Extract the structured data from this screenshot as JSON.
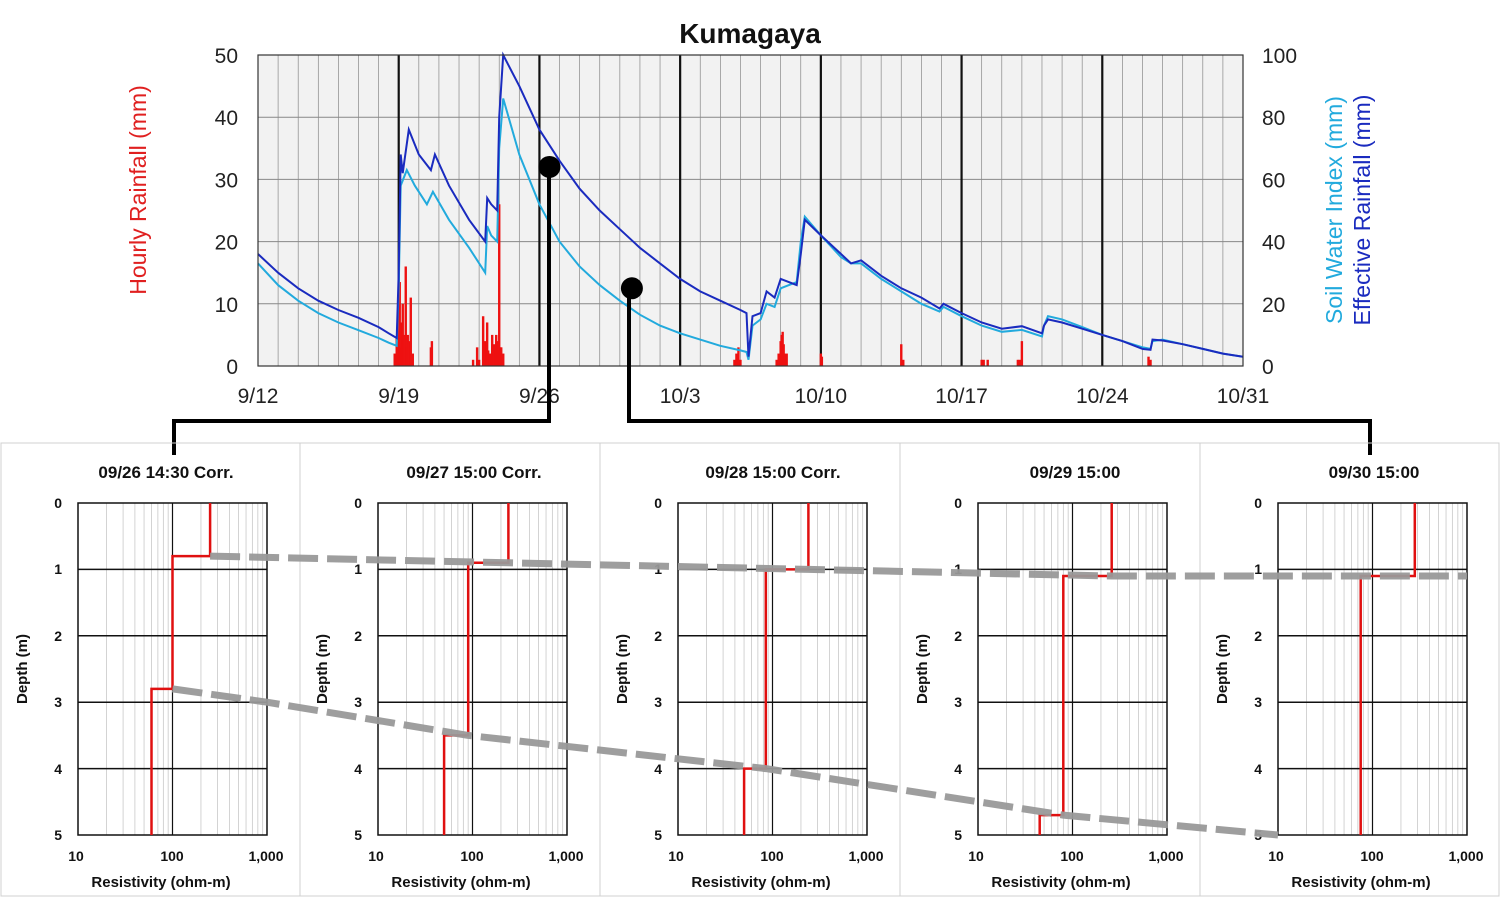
{
  "chart_data": [
    {
      "type": "line",
      "title": "Kumagaya",
      "ylabel_left": "Hourly Rainfall (mm)",
      "ylabel_right": [
        "Soil Water Index (mm)",
        "Effective Rainfall (mm)"
      ],
      "x_tick_labels": [
        "9/12",
        "9/19",
        "9/26",
        "10/3",
        "10/10",
        "10/17",
        "10/24",
        "10/31"
      ],
      "x_range_days": [
        0,
        49
      ],
      "y_left_ticks": [
        "0",
        "10",
        "20",
        "30",
        "40",
        "50"
      ],
      "ylim_left": [
        0,
        50
      ],
      "y_right_ticks": [
        "0",
        "20",
        "40",
        "60",
        "80",
        "100"
      ],
      "ylim_right": [
        0,
        100
      ],
      "colors": {
        "rainfall": "#ee1111",
        "soil_water_index": "#22aadd",
        "effective_rainfall": "#1a2bbf",
        "grid": "#888888",
        "plot_bg": "#f2f2f2"
      },
      "series": [
        {
          "name": "Effective Rainfall (mm)",
          "axis": "right",
          "points": [
            [
              0,
              36
            ],
            [
              1,
              30
            ],
            [
              2,
              25
            ],
            [
              3,
              21
            ],
            [
              4,
              18
            ],
            [
              5,
              15.5
            ],
            [
              6,
              12.5
            ],
            [
              6.5,
              10.5
            ],
            [
              6.9,
              9
            ],
            [
              7.0,
              30
            ],
            [
              7.1,
              68
            ],
            [
              7.2,
              62
            ],
            [
              7.5,
              76
            ],
            [
              8.0,
              68
            ],
            [
              8.6,
              63
            ],
            [
              8.8,
              68
            ],
            [
              9.5,
              58
            ],
            [
              10.5,
              47
            ],
            [
              11.3,
              40
            ],
            [
              11.4,
              54
            ],
            [
              11.6,
              52
            ],
            [
              11.9,
              50
            ],
            [
              12.0,
              80
            ],
            [
              12.2,
              104
            ],
            [
              13.0,
              90
            ],
            [
              14,
              76
            ],
            [
              15,
              66
            ],
            [
              16,
              57
            ],
            [
              17,
              50
            ],
            [
              18,
              44
            ],
            [
              19,
              38
            ],
            [
              20,
              33
            ],
            [
              21,
              28
            ],
            [
              22,
              24
            ],
            [
              23,
              21
            ],
            [
              24,
              18
            ],
            [
              24.3,
              17
            ],
            [
              24.4,
              3
            ],
            [
              24.6,
              16
            ],
            [
              25,
              17
            ],
            [
              25.3,
              24
            ],
            [
              25.7,
              22
            ],
            [
              26,
              28
            ],
            [
              26.8,
              26
            ],
            [
              27.0,
              36
            ],
            [
              27.2,
              47
            ],
            [
              28,
              42
            ],
            [
              29,
              36
            ],
            [
              29.5,
              33
            ],
            [
              30,
              34
            ],
            [
              31,
              29
            ],
            [
              32,
              25
            ],
            [
              33,
              22
            ],
            [
              33.9,
              18.5
            ],
            [
              34.1,
              20
            ],
            [
              35,
              17
            ],
            [
              36,
              14
            ],
            [
              37,
              12
            ],
            [
              38,
              12.8
            ],
            [
              39,
              10.5
            ],
            [
              39.1,
              13
            ],
            [
              39.3,
              15
            ],
            [
              40,
              14
            ],
            [
              41,
              12
            ],
            [
              42,
              10
            ],
            [
              43,
              8
            ],
            [
              44,
              5.5
            ],
            [
              44.4,
              5.2
            ],
            [
              44.5,
              8.5
            ],
            [
              45,
              8.2
            ],
            [
              46,
              7
            ],
            [
              47,
              5.5
            ],
            [
              48,
              4
            ],
            [
              49,
              3
            ]
          ]
        },
        {
          "name": "Soil Water Index (mm)",
          "axis": "right",
          "points": [
            [
              0,
              33
            ],
            [
              1,
              26
            ],
            [
              2,
              21
            ],
            [
              3,
              17
            ],
            [
              4,
              14
            ],
            [
              5,
              11.5
            ],
            [
              6,
              9
            ],
            [
              6.5,
              7.5
            ],
            [
              6.9,
              6.5
            ],
            [
              7.0,
              25
            ],
            [
              7.1,
              58
            ],
            [
              7.4,
              63
            ],
            [
              7.8,
              58
            ],
            [
              8.4,
              52
            ],
            [
              8.7,
              56
            ],
            [
              9.5,
              47
            ],
            [
              10.5,
              38
            ],
            [
              11.3,
              30
            ],
            [
              11.4,
              45
            ],
            [
              11.6,
              42
            ],
            [
              11.9,
              40
            ],
            [
              12.0,
              70
            ],
            [
              12.2,
              86
            ],
            [
              13.0,
              68
            ],
            [
              14,
              52
            ],
            [
              15,
              40
            ],
            [
              16,
              32
            ],
            [
              17,
              26
            ],
            [
              18,
              21
            ],
            [
              19,
              16.5
            ],
            [
              20,
              13
            ],
            [
              21,
              10.5
            ],
            [
              22,
              8.5
            ],
            [
              23,
              6.5
            ],
            [
              24,
              5
            ],
            [
              24.3,
              4.5
            ],
            [
              24.4,
              2
            ],
            [
              24.6,
              13
            ],
            [
              25,
              15
            ],
            [
              25.3,
              20
            ],
            [
              25.7,
              19
            ],
            [
              26,
              25
            ],
            [
              26.8,
              27
            ],
            [
              27.0,
              40
            ],
            [
              27.2,
              48
            ],
            [
              28,
              42
            ],
            [
              29,
              35
            ],
            [
              29.5,
              33
            ],
            [
              30,
              33
            ],
            [
              31,
              28
            ],
            [
              32,
              24
            ],
            [
              33,
              20
            ],
            [
              33.9,
              17.5
            ],
            [
              34.1,
              19
            ],
            [
              35,
              16
            ],
            [
              36,
              13
            ],
            [
              37,
              11
            ],
            [
              38,
              11.6
            ],
            [
              39,
              9.5
            ],
            [
              39.1,
              13
            ],
            [
              39.3,
              16
            ],
            [
              40,
              15
            ],
            [
              41,
              12.5
            ],
            [
              42,
              10
            ],
            [
              43,
              8
            ],
            [
              44,
              6
            ],
            [
              44.4,
              5.5
            ],
            [
              44.5,
              8
            ],
            [
              45,
              8.5
            ],
            [
              46,
              7
            ],
            [
              47,
              5.5
            ],
            [
              48,
              4
            ],
            [
              49,
              3
            ]
          ]
        },
        {
          "name": "Hourly Rainfall (mm)",
          "axis": "left",
          "type": "bar",
          "bars": [
            [
              6.8,
              2
            ],
            [
              6.9,
              4.5
            ],
            [
              6.95,
              7
            ],
            [
              7.0,
              2
            ],
            [
              7.05,
              13.5
            ],
            [
              7.1,
              3
            ],
            [
              7.15,
              7
            ],
            [
              7.2,
              10
            ],
            [
              7.25,
              5
            ],
            [
              7.35,
              16
            ],
            [
              7.4,
              3
            ],
            [
              7.45,
              5
            ],
            [
              7.55,
              4
            ],
            [
              7.6,
              11
            ],
            [
              7.7,
              2
            ],
            [
              8.6,
              3
            ],
            [
              8.65,
              4
            ],
            [
              10.7,
              1
            ],
            [
              10.9,
              3
            ],
            [
              11.0,
              1
            ],
            [
              11.2,
              8
            ],
            [
              11.3,
              4
            ],
            [
              11.4,
              7
            ],
            [
              11.45,
              2.5
            ],
            [
              11.55,
              2
            ],
            [
              11.65,
              5
            ],
            [
              11.7,
              3
            ],
            [
              11.75,
              3.5
            ],
            [
              11.8,
              2.5
            ],
            [
              11.85,
              5
            ],
            [
              11.9,
              4
            ],
            [
              11.95,
              2.5
            ],
            [
              12.0,
              26
            ],
            [
              12.05,
              3
            ],
            [
              12.1,
              3
            ],
            [
              12.2,
              2
            ],
            [
              23.7,
              1
            ],
            [
              23.8,
              2
            ],
            [
              23.9,
              3
            ],
            [
              24.0,
              1
            ],
            [
              25.8,
              1
            ],
            [
              25.9,
              2
            ],
            [
              26.0,
              4
            ],
            [
              26.05,
              5
            ],
            [
              26.1,
              5.5
            ],
            [
              26.15,
              3.5
            ],
            [
              26.2,
              2
            ],
            [
              26.3,
              2
            ],
            [
              28.0,
              2
            ],
            [
              28.05,
              1.5
            ],
            [
              32.0,
              3.5
            ],
            [
              32.1,
              1
            ],
            [
              36.0,
              1
            ],
            [
              36.1,
              1
            ],
            [
              36.3,
              1
            ],
            [
              37.8,
              1
            ],
            [
              37.9,
              1
            ],
            [
              38.0,
              4
            ],
            [
              44.3,
              1.5
            ],
            [
              44.4,
              1
            ]
          ]
        }
      ],
      "markers": [
        {
          "day": 14.5,
          "value_right": 64,
          "label": "09/26 14:30"
        },
        {
          "day": 18.6,
          "value_right": 25,
          "label": "09/30 15:00"
        }
      ]
    },
    {
      "type": "line",
      "title": "09/26 14:30 Corr.",
      "xlabel": "Resistivity (ohm-m)",
      "ylabel": "Depth (m)",
      "x_scale": "log",
      "xlim": [
        10,
        1000
      ],
      "ylim": [
        0,
        5
      ],
      "x_tick_labels": [
        "10",
        "100",
        "1,000"
      ],
      "y_tick_labels": [
        "0",
        "1",
        "2",
        "3",
        "4",
        "5"
      ],
      "profile": [
        [
          250,
          0
        ],
        [
          250,
          0.8
        ],
        [
          100,
          0.8
        ],
        [
          100,
          2.8
        ],
        [
          60,
          2.8
        ],
        [
          60,
          5
        ]
      ]
    },
    {
      "type": "line",
      "title": "09/27 15:00 Corr.",
      "xlabel": "Resistivity (ohm-m)",
      "ylabel": "Depth (m)",
      "x_scale": "log",
      "xlim": [
        10,
        1000
      ],
      "ylim": [
        0,
        5
      ],
      "x_tick_labels": [
        "10",
        "100",
        "1,000"
      ],
      "y_tick_labels": [
        "0",
        "1",
        "2",
        "3",
        "4",
        "5"
      ],
      "profile": [
        [
          240,
          0
        ],
        [
          240,
          0.9
        ],
        [
          90,
          0.9
        ],
        [
          90,
          3.5
        ],
        [
          50,
          3.5
        ],
        [
          50,
          5
        ]
      ]
    },
    {
      "type": "line",
      "title": "09/28 15:00 Corr.",
      "xlabel": "Resistivity (ohm-m)",
      "ylabel": "Depth (m)",
      "x_scale": "log",
      "xlim": [
        10,
        1000
      ],
      "ylim": [
        0,
        5
      ],
      "x_tick_labels": [
        "10",
        "100",
        "1,000"
      ],
      "y_tick_labels": [
        "0",
        "1",
        "2",
        "3",
        "4",
        "5"
      ],
      "profile": [
        [
          240,
          0
        ],
        [
          240,
          1.0
        ],
        [
          85,
          1.0
        ],
        [
          85,
          4.0
        ],
        [
          50,
          4.0
        ],
        [
          50,
          5
        ]
      ]
    },
    {
      "type": "line",
      "title": "09/29 15:00",
      "xlabel": "Resistivity (ohm-m)",
      "ylabel": "Depth (m)",
      "x_scale": "log",
      "xlim": [
        10,
        1000
      ],
      "ylim": [
        0,
        5
      ],
      "x_tick_labels": [
        "10",
        "100",
        "1,000"
      ],
      "y_tick_labels": [
        "0",
        "1",
        "2",
        "3",
        "4",
        "5"
      ],
      "profile": [
        [
          260,
          0
        ],
        [
          260,
          1.1
        ],
        [
          80,
          1.1
        ],
        [
          80,
          4.7
        ],
        [
          45,
          4.7
        ],
        [
          45,
          5
        ]
      ]
    },
    {
      "type": "line",
      "title": "09/30 15:00",
      "xlabel": "Resistivity (ohm-m)",
      "ylabel": "Depth (m)",
      "x_scale": "log",
      "xlim": [
        10,
        1000
      ],
      "ylim": [
        0,
        5
      ],
      "x_tick_labels": [
        "10",
        "100",
        "1,000"
      ],
      "y_tick_labels": [
        "0",
        "1",
        "2",
        "3",
        "4",
        "5"
      ],
      "profile": [
        [
          280,
          0
        ],
        [
          280,
          1.1
        ],
        [
          75,
          1.1
        ],
        [
          75,
          5
        ]
      ]
    }
  ],
  "boundary_lines": [
    {
      "name": "upper-boundary",
      "points": [
        [
          0,
          250,
          0.8
        ],
        [
          1,
          240,
          0.9
        ],
        [
          2,
          240,
          1.0
        ],
        [
          3,
          260,
          1.1
        ],
        [
          4,
          1000,
          1.1
        ]
      ]
    },
    {
      "name": "lower-boundary",
      "points": [
        [
          0,
          100,
          2.8
        ],
        [
          0,
          1000,
          3.0
        ],
        [
          1,
          90,
          3.5
        ],
        [
          2,
          85,
          4.0
        ],
        [
          3,
          80,
          4.7
        ],
        [
          4,
          10,
          5.0
        ]
      ]
    }
  ]
}
